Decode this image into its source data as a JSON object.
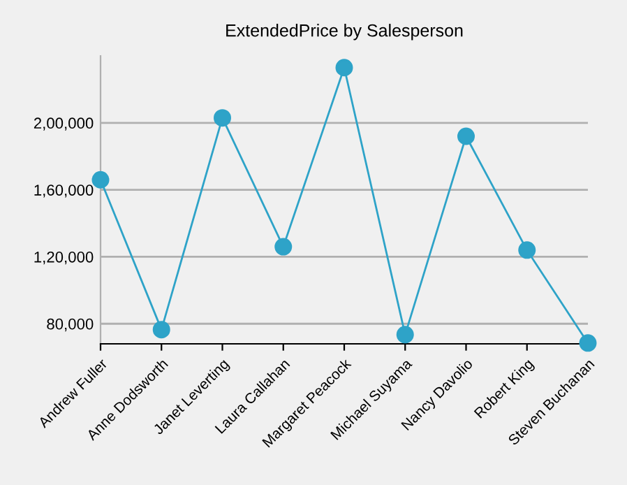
{
  "chart_data": {
    "type": "line",
    "title": "ExtendedPrice by Salesperson",
    "categories": [
      "Andrew Fuller",
      "Anne Dodsworth",
      "Janet Leverting",
      "Laura Callahan",
      "Margaret Peacock",
      "Michael Suyama",
      "Nancy Davolio",
      "Robert King",
      "Steven Buchanan"
    ],
    "series": [
      {
        "color": "#2ea3c8",
        "values": [
          166000,
          76500,
          203000,
          126000,
          233000,
          73500,
          192000,
          124000,
          68500
        ]
      }
    ],
    "ylim": [
      68000,
      240000
    ],
    "yticks": [
      {
        "value": 80000,
        "label": "80,000"
      },
      {
        "value": 120000,
        "label": "1,20,000"
      },
      {
        "value": 160000,
        "label": "1,60,000"
      },
      {
        "value": 200000,
        "label": "2,00,000"
      }
    ],
    "grid": "y",
    "marker": "circle",
    "line_style": "solid",
    "legend": false
  }
}
